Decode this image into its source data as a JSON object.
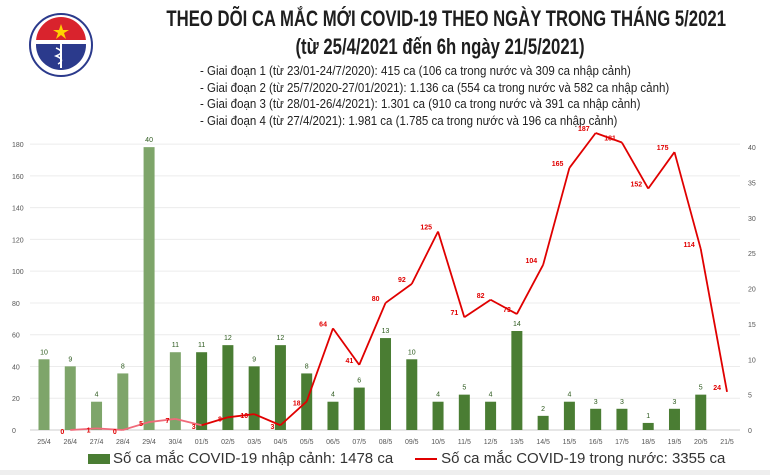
{
  "header": {
    "title": "THEO DÕI CA MẮC MỚI COVID-19 THEO NGÀY TRONG THÁNG 5/2021",
    "subtitle": "(từ 25/4/2021 đến 6h ngày 21/5/2021)",
    "notes": [
      "- Giai đoạn 1 (từ 23/01-24/7/2020): 415 ca (106 ca trong nước và 309 ca nhập cảnh)",
      "- Giai đoạn 2 (từ 25/7/2020-27/01/2021): 1.136 ca (554 ca trong nước và 582 ca nhập cảnh)",
      "- Giai đoạn 3 (từ 28/01-26/4/2021): 1.301 ca (910 ca trong nước và 391 ca nhập cảnh)",
      "- Giai đoạn 4 (từ 27/4/2021): 1.981 ca (1.785 ca trong nước và 196 ca nhập cảnh)"
    ],
    "logo_text": "BỘ Y TẾ MINISTRY OF HEALTH"
  },
  "legend": {
    "bars": "Số ca mắc COVID-19 nhập cảnh: 1478 ca",
    "line": "Số ca mắc COVID-19 trong nước: 3355 ca"
  },
  "chart_data": {
    "type": "bar+line",
    "categories": [
      "25/4",
      "26/4",
      "27/4",
      "28/4",
      "29/4",
      "30/4",
      "01/5",
      "02/5",
      "03/5",
      "04/5",
      "05/5",
      "06/5",
      "07/5",
      "08/5",
      "09/5",
      "10/5",
      "11/5",
      "12/5",
      "13/5",
      "14/5",
      "15/5",
      "16/5",
      "17/5",
      "18/5",
      "19/5",
      "20/5",
      "21/5"
    ],
    "series": [
      {
        "name": "Số ca mắc COVID-19 nhập cảnh",
        "type": "bar",
        "axis": "right",
        "values": [
          10,
          9,
          4,
          8,
          40,
          11,
          11,
          12,
          9,
          12,
          8,
          4,
          6,
          13,
          10,
          4,
          5,
          4,
          14,
          2,
          4,
          3,
          3,
          1,
          3,
          5,
          null
        ]
      },
      {
        "name": "Số ca mắc COVID-19 trong nước",
        "type": "line",
        "axis": "left",
        "values": [
          null,
          0,
          1,
          0,
          5,
          7,
          3,
          8,
          10,
          3,
          18,
          64,
          41,
          80,
          92,
          125,
          71,
          82,
          73,
          104,
          165,
          187,
          181,
          152,
          175,
          114,
          24
        ]
      }
    ],
    "left_axis": {
      "ticks": [
        0,
        20,
        40,
        60,
        80,
        100,
        120,
        140,
        160,
        180
      ],
      "range": [
        0,
        187
      ]
    },
    "right_axis": {
      "ticks": [
        0,
        5,
        10,
        15,
        20,
        25,
        30,
        35,
        40
      ],
      "range": [
        0,
        42
      ]
    },
    "grid": true,
    "legend_position": "bottom",
    "colors": {
      "bar_early": "#7ea56a",
      "bar": "#4a7d33",
      "line_early": "#f06a7a",
      "line": "#e00000",
      "label_bar": "#2d5a1e",
      "label_line": "#e00000"
    }
  }
}
